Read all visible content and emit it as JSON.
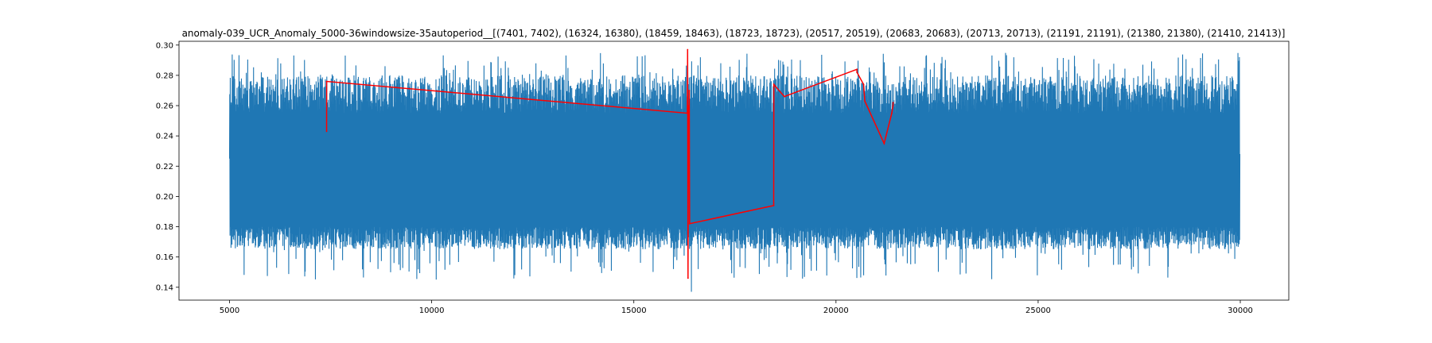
{
  "chart_data": {
    "type": "line",
    "title": "anomaly-039_UCR_Anomaly_5000-36windowsize-35autoperiod__[(7401, 7402), (16324, 16380), (18459, 18463), (18723, 18723), (20517, 20519), (20683, 20683), (20713, 20713), (21191, 21191), (21380, 21380), (21410, 21413)]",
    "xlabel": "",
    "ylabel": "",
    "xlim": [
      3750,
      31200
    ],
    "ylim": [
      0.1315,
      0.3025
    ],
    "x_ticks": [
      5000,
      10000,
      15000,
      20000,
      25000,
      30000
    ],
    "y_ticks": [
      0.14,
      0.16,
      0.18,
      0.2,
      0.22,
      0.24,
      0.26,
      0.28,
      0.3
    ],
    "x_tick_labels": [
      "5000",
      "10000",
      "15000",
      "20000",
      "25000",
      "30000"
    ],
    "y_tick_labels": [
      "0.14",
      "0.16",
      "0.18",
      "0.20",
      "0.22",
      "0.24",
      "0.26",
      "0.28",
      "0.30"
    ],
    "grid": false,
    "series": [
      {
        "color": "#1f77b4",
        "style": "dense-oscillation",
        "x_range": [
          5000,
          29990
        ],
        "band_low": [
          0.165,
          0.18
        ],
        "band_high": [
          0.255,
          0.28
        ],
        "extremes_low": [
          0.145,
          0.165
        ],
        "extremes_high": [
          0.28,
          0.295
        ],
        "notable_points": [
          {
            "x": 5000,
            "y": 0.225
          },
          {
            "x": 16400,
            "y": 0.297
          },
          {
            "x": 16420,
            "y": 0.137
          },
          {
            "x": 29990,
            "y": 0.228
          }
        ]
      },
      {
        "color": "#ff0000",
        "style": "line",
        "x": [
          7401,
          7402,
          16324,
          16330,
          16340,
          16350,
          16360,
          16370,
          16380,
          18459,
          18463,
          18723,
          20517,
          20519,
          20683,
          20713,
          21191,
          21380,
          21410,
          21413
        ],
        "y": [
          0.243,
          0.276,
          0.255,
          0.297,
          0.146,
          0.26,
          0.215,
          0.27,
          0.182,
          0.194,
          0.274,
          0.266,
          0.284,
          0.282,
          0.274,
          0.263,
          0.235,
          0.255,
          0.26,
          0.262
        ]
      }
    ]
  }
}
